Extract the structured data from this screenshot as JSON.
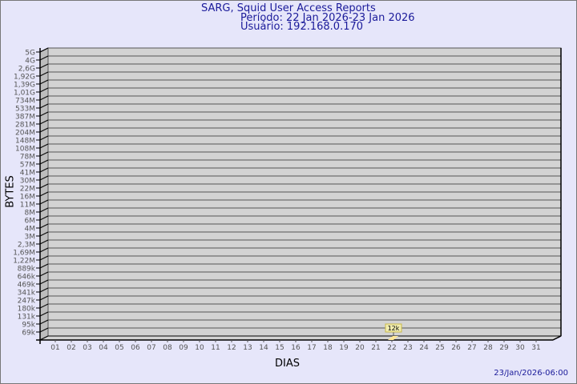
{
  "chart_data": {
    "type": "bar",
    "title": "SARG, Squid User Access Reports",
    "subtitle_period": "Período: 22 Jan 2026-23 Jan 2026",
    "subtitle_user": "Usuário: 192.168.0.170",
    "xlabel": "DIAS",
    "ylabel": "BYTES",
    "yscale": "log",
    "grid": true,
    "categories": [
      "01",
      "02",
      "03",
      "04",
      "05",
      "06",
      "07",
      "08",
      "09",
      "10",
      "11",
      "12",
      "13",
      "14",
      "15",
      "16",
      "17",
      "18",
      "19",
      "20",
      "21",
      "22",
      "23",
      "24",
      "25",
      "26",
      "27",
      "28",
      "29",
      "30",
      "31"
    ],
    "y_tick_labels": [
      "5G",
      "4G",
      "2,6G",
      "1,92G",
      "1,39G",
      "1,01G",
      "734M",
      "533M",
      "387M",
      "281M",
      "204M",
      "148M",
      "108M",
      "78M",
      "57M",
      "41M",
      "30M",
      "22M",
      "16M",
      "11M",
      "8M",
      "6M",
      "4M",
      "3M",
      "2,3M",
      "1,69M",
      "1,22M",
      "889k",
      "646k",
      "469k",
      "341k",
      "247k",
      "180k",
      "131k",
      "95k",
      "69k"
    ],
    "series": [
      {
        "values": [
          null,
          null,
          null,
          null,
          null,
          null,
          null,
          null,
          null,
          null,
          null,
          null,
          null,
          null,
          null,
          null,
          null,
          null,
          null,
          null,
          null,
          12000,
          null,
          null,
          null,
          null,
          null,
          null,
          null,
          null,
          null
        ]
      }
    ],
    "data_labels": {
      "22": "12k"
    },
    "colors": {
      "wall": "#d3d3d3",
      "side": "#bdbdbd",
      "bar": "#ffe89a",
      "label_bg": "#f2eeb0",
      "text": "#1a1a9a"
    }
  },
  "footer_timestamp": "23/Jan/2026-06:00"
}
